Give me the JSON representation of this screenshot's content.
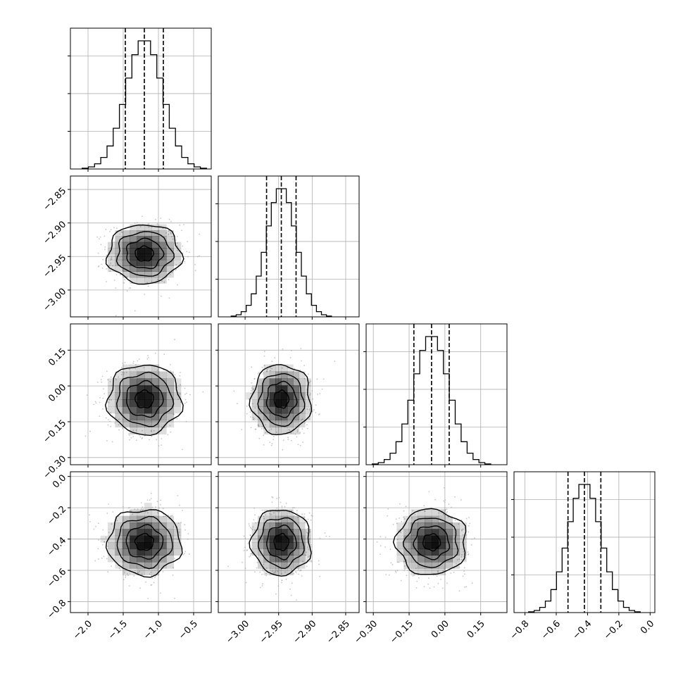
{
  "chart_data": {
    "type": "corner",
    "grid": true,
    "params": [
      {
        "range": [
          -2.25,
          -0.25
        ],
        "ticks": [
          -2.0,
          -1.5,
          -1.0,
          -0.5
        ],
        "tick_labels": [
          "−2.0",
          "−1.5",
          "−1.0",
          "−0.5"
        ],
        "mean": -1.2,
        "sd": 0.26,
        "quantiles": [
          -1.47,
          -1.2,
          -0.93
        ]
      },
      {
        "range": [
          -3.04,
          -2.83
        ],
        "ticks": [
          -3.0,
          -2.95,
          -2.9,
          -2.85
        ],
        "tick_labels": [
          "−3.00",
          "−2.95",
          "−2.90",
          "−2.85"
        ],
        "mean": -2.946,
        "sd": 0.022,
        "quantiles": [
          -2.968,
          -2.946,
          -2.924
        ]
      },
      {
        "range": [
          -0.33,
          0.26
        ],
        "ticks": [
          -0.3,
          -0.15,
          0.0,
          0.15
        ],
        "tick_labels": [
          "−0.30",
          "−0.15",
          "0.00",
          "0.15"
        ],
        "mean": -0.056,
        "sd": 0.073,
        "quantiles": [
          -0.13,
          -0.056,
          0.018
        ]
      },
      {
        "range": [
          -0.87,
          0.03
        ],
        "ticks": [
          -0.8,
          -0.6,
          -0.4,
          -0.2,
          0.0
        ],
        "tick_labels": [
          "−0.8",
          "−0.6",
          "−0.4",
          "−0.2",
          "0.0"
        ],
        "mean": -0.42,
        "sd": 0.105,
        "quantiles": [
          -0.525,
          -0.42,
          -0.315
        ]
      }
    ],
    "hist_bins": 20,
    "hist_ticks": 3,
    "contour_levels_sigma": [
      0.5,
      1.0,
      1.5,
      2.0
    ],
    "colors": {
      "line": "#000000",
      "grid": "#b0b0b0",
      "points": "#a0a0a0",
      "density": "#000000"
    }
  }
}
